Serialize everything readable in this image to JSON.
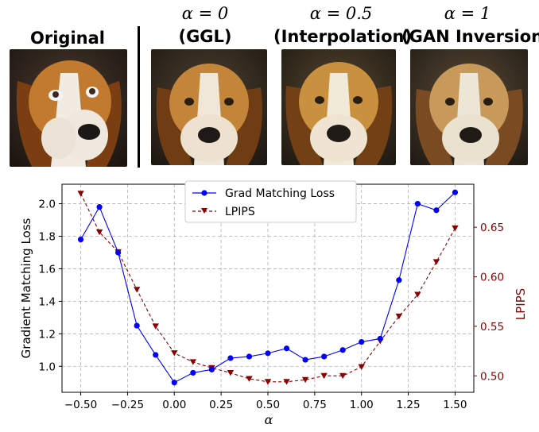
{
  "panels": [
    {
      "title": "Original",
      "alpha_line": ""
    },
    {
      "title": "(GGL)",
      "alpha_line": "α = 0"
    },
    {
      "title": "(Interpolation)",
      "alpha_line": "α = 0.5"
    },
    {
      "title": "(GAN Inversion)",
      "alpha_line": "α = 1"
    }
  ],
  "colors": {
    "grad": "#0000ff",
    "lpips": "#8b0000",
    "grid": "#b0b0b0"
  },
  "chart_data": {
    "type": "line",
    "xlabel": "α",
    "ylabel_left": "Gradient Matching Loss",
    "ylabel_right": "LPIPS",
    "x": [
      -0.5,
      -0.4,
      -0.3,
      -0.2,
      -0.1,
      0.0,
      0.1,
      0.2,
      0.3,
      0.4,
      0.5,
      0.6,
      0.7,
      0.8,
      0.9,
      1.0,
      1.1,
      1.2,
      1.3,
      1.4,
      1.5
    ],
    "xlim": [
      -0.6,
      1.6
    ],
    "xticks": [
      "−0.50",
      "−0.25",
      "0.00",
      "0.25",
      "0.50",
      "0.75",
      "1.00",
      "1.25",
      "1.50"
    ],
    "xtick_values": [
      -0.5,
      -0.25,
      0.0,
      0.25,
      0.5,
      0.75,
      1.0,
      1.25,
      1.5
    ],
    "ylim_left": [
      0.84,
      2.12
    ],
    "yticks_left": [
      "1.0",
      "1.2",
      "1.4",
      "1.6",
      "1.8",
      "2.0"
    ],
    "ytick_values_left": [
      1.0,
      1.2,
      1.4,
      1.6,
      1.8,
      2.0
    ],
    "ylim_right": [
      0.4834,
      0.6934
    ],
    "yticks_right": [
      "0.50",
      "0.55",
      "0.60",
      "0.65"
    ],
    "ytick_values_right": [
      0.5,
      0.55,
      0.6,
      0.65
    ],
    "series": [
      {
        "name": "Grad Matching Loss",
        "axis": "left",
        "marker": "circle",
        "linestyle": "solid",
        "values": [
          1.78,
          1.98,
          1.7,
          1.25,
          1.07,
          0.9,
          0.96,
          0.98,
          1.05,
          1.06,
          1.08,
          1.11,
          1.04,
          1.06,
          1.1,
          1.15,
          1.17,
          1.53,
          2.0,
          1.96,
          2.07
        ]
      },
      {
        "name": "LPIPS",
        "axis": "right",
        "marker": "triangle-down",
        "linestyle": "dashed",
        "values": [
          0.684,
          0.645,
          0.625,
          0.587,
          0.55,
          0.523,
          0.514,
          0.508,
          0.503,
          0.497,
          0.494,
          0.494,
          0.496,
          0.5,
          0.5,
          0.509,
          0.535,
          0.56,
          0.582,
          0.615,
          0.649
        ]
      }
    ],
    "legend": "upper-center"
  }
}
